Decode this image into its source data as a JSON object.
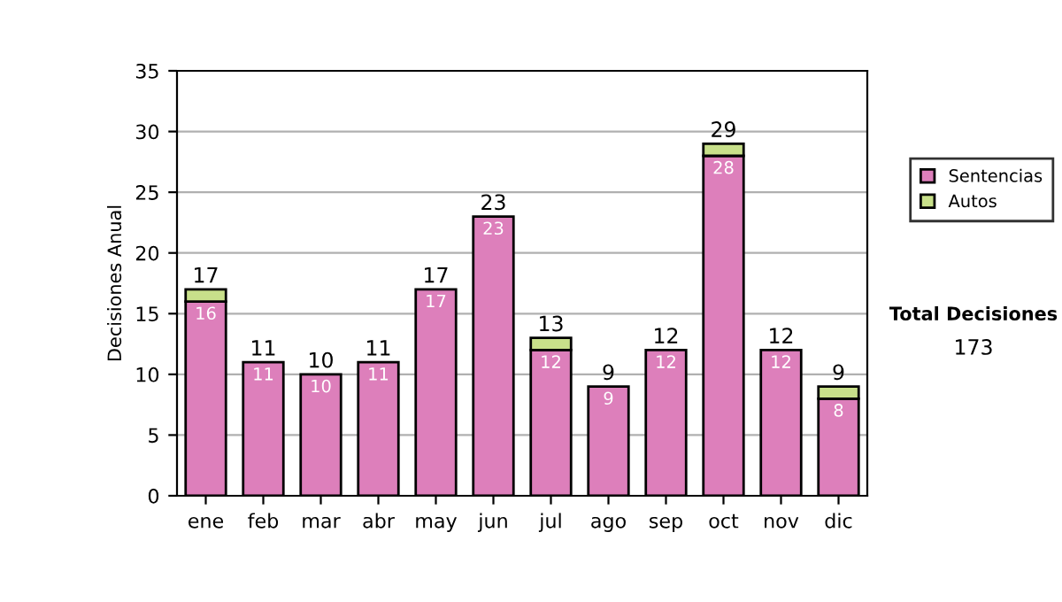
{
  "chart_data": {
    "type": "bar",
    "stacked": true,
    "ylabel": "Decisiones Anual",
    "categories": [
      "ene",
      "feb",
      "mar",
      "abr",
      "may",
      "jun",
      "jul",
      "ago",
      "sep",
      "oct",
      "nov",
      "dic"
    ],
    "series": [
      {
        "name": "Sentencias",
        "color": "#dd7fbb",
        "values": [
          16,
          11,
          10,
          11,
          17,
          23,
          12,
          9,
          12,
          28,
          12,
          8
        ],
        "value_labels": [
          "16",
          "11",
          "10",
          "11",
          "17",
          "23",
          "12",
          "9",
          "12",
          "28",
          "12",
          "8"
        ]
      },
      {
        "name": "Autos",
        "color": "#c8e08a",
        "values": [
          1,
          null,
          null,
          null,
          null,
          null,
          1,
          null,
          null,
          1,
          null,
          1
        ]
      }
    ],
    "totals": [
      "17",
      "11",
      "10",
      "11",
      "17",
      "23",
      "13",
      "9",
      "12",
      "29",
      "12",
      "9"
    ],
    "ylim": [
      0,
      35
    ],
    "yticks": [
      0,
      5,
      10,
      15,
      20,
      25,
      30,
      35
    ],
    "grid": "y",
    "legend": "right",
    "annotations": [
      "Total Decisiones",
      "173"
    ]
  }
}
